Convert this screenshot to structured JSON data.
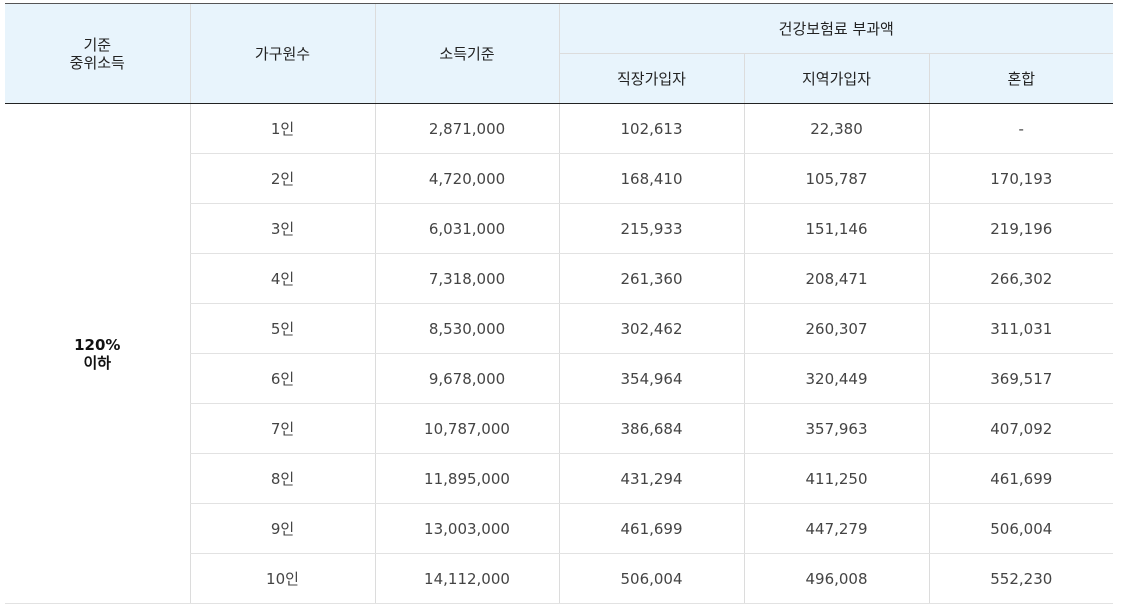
{
  "header": {
    "median_income_line1": "기준",
    "median_income_line2": "중위소득",
    "household_size": "가구원수",
    "income_standard": "소득기준",
    "premium_group": "건강보험료 부과액",
    "employee": "직장가입자",
    "regional": "지역가입자",
    "mixed": "혼합"
  },
  "group": {
    "line1": "120%",
    "line2": "이하"
  },
  "rows": [
    {
      "size": "1인",
      "income": "2,871,000",
      "employee": "102,613",
      "regional": "22,380",
      "mixed": "-"
    },
    {
      "size": "2인",
      "income": "4,720,000",
      "employee": "168,410",
      "regional": "105,787",
      "mixed": "170,193"
    },
    {
      "size": "3인",
      "income": "6,031,000",
      "employee": "215,933",
      "regional": "151,146",
      "mixed": "219,196"
    },
    {
      "size": "4인",
      "income": "7,318,000",
      "employee": "261,360",
      "regional": "208,471",
      "mixed": "266,302"
    },
    {
      "size": "5인",
      "income": "8,530,000",
      "employee": "302,462",
      "regional": "260,307",
      "mixed": "311,031"
    },
    {
      "size": "6인",
      "income": "9,678,000",
      "employee": "354,964",
      "regional": "320,449",
      "mixed": "369,517"
    },
    {
      "size": "7인",
      "income": "10,787,000",
      "employee": "386,684",
      "regional": "357,963",
      "mixed": "407,092"
    },
    {
      "size": "8인",
      "income": "11,895,000",
      "employee": "431,294",
      "regional": "411,250",
      "mixed": "461,699"
    },
    {
      "size": "9인",
      "income": "13,003,000",
      "employee": "461,699",
      "regional": "447,279",
      "mixed": "506,004"
    },
    {
      "size": "10인",
      "income": "14,112,000",
      "employee": "506,004",
      "regional": "496,008",
      "mixed": "552,230"
    }
  ]
}
